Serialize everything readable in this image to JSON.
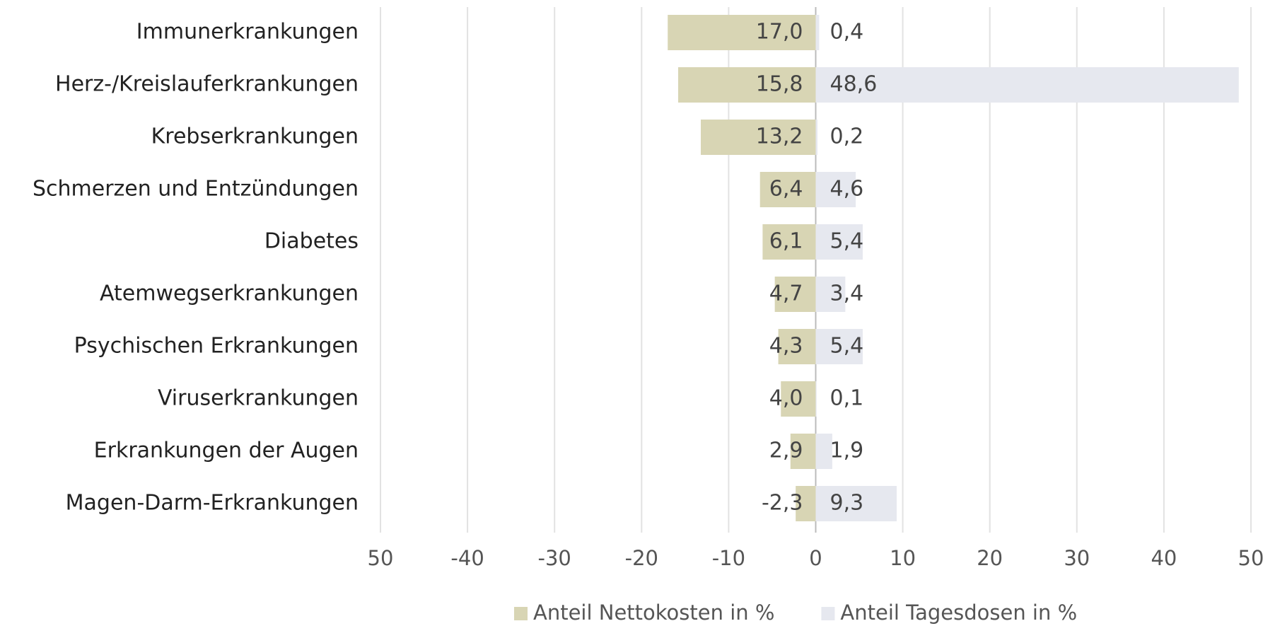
{
  "chart_data": {
    "type": "bar",
    "orientation": "horizontal",
    "layout": "diverging",
    "categories": [
      "Immunerkrankungen",
      "Herz-/Kreislauferkrankungen",
      "Krebserkrankungen",
      "Schmerzen und Entzündungen",
      "Diabetes",
      "Atemwegserkrankungen",
      "Psychischen Erkrankungen",
      "Viruserkrankungen",
      "Erkrankungen der Augen",
      "Magen-Darm-Erkrankungen"
    ],
    "series": [
      {
        "name": "Anteil Nettokosten in %",
        "color": "#d8d5b4",
        "values": [
          -17.0,
          -15.8,
          -13.2,
          -6.4,
          -6.1,
          -4.7,
          -4.3,
          -4.0,
          -2.9,
          -2.3
        ],
        "value_labels": [
          "17,0",
          "15,8",
          "13,2",
          "6,4",
          "6,1",
          "4,7",
          "4,3",
          "4,0",
          "2,9",
          "-2,3"
        ]
      },
      {
        "name": "Anteil Tagesdosen in %",
        "color": "#e6e8ef",
        "values": [
          0.4,
          48.6,
          0.2,
          4.6,
          5.4,
          3.4,
          5.4,
          0.1,
          1.9,
          9.3
        ],
        "value_labels": [
          "0,4",
          "48,6",
          "0,2",
          "4,6",
          "5,4",
          "3,4",
          "5,4",
          "0,1",
          "1,9",
          "9,3"
        ]
      }
    ],
    "xlim": [
      -50,
      50
    ],
    "xticks": [
      {
        "value": -50,
        "label": "50"
      },
      -40,
      -30,
      -20,
      -10,
      0,
      10,
      20,
      30,
      40,
      50
    ],
    "grid": true,
    "legend": "bottom"
  }
}
